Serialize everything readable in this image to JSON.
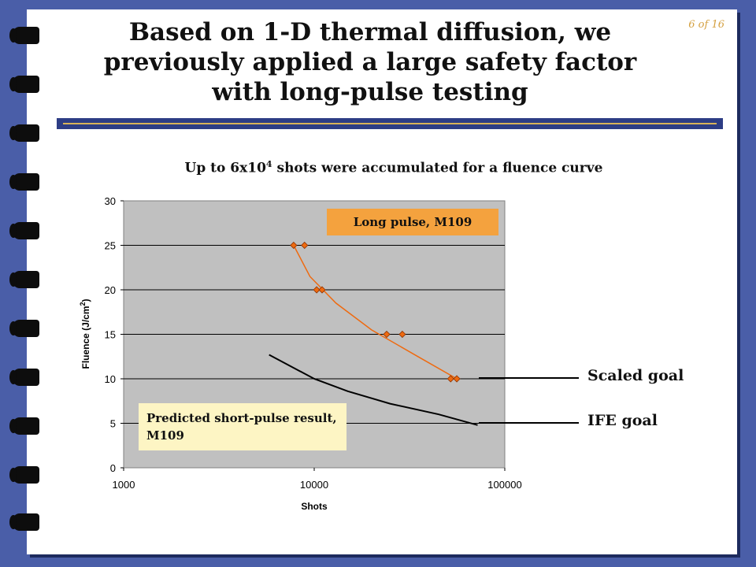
{
  "slide": {
    "title": "Based on 1-D thermal diffusion, we previously applied a large safety factor with long-pulse testing",
    "page_number": "6 of 16",
    "subtitle_pre": "Up to 6x10",
    "subtitle_sup": "4",
    "subtitle_post": " shots were accumulated for a fluence curve"
  },
  "annotations": {
    "long_pulse": "Long pulse, M109",
    "short_pulse": "Predicted short-pulse result, M109",
    "scaled_goal": "Scaled goal",
    "ife_goal": "IFE goal"
  },
  "colors": {
    "plot_bg": "#c0c0c0",
    "long_pulse_series": "#ee6a10",
    "short_pulse_curve": "#000000",
    "slide_frame": "#4a5ea8"
  },
  "chart_data": {
    "type": "scatter",
    "xscale": "log",
    "xlim": [
      1000,
      100000
    ],
    "ylim": [
      0,
      30
    ],
    "xlabel": "Shots",
    "ylabel": "Fluence (J/cm2)",
    "xticks": [
      "1000",
      "10000",
      "100000"
    ],
    "yticks": [
      "0",
      "5",
      "10",
      "15",
      "20",
      "25",
      "30"
    ],
    "grid": true,
    "series": [
      {
        "points": [
          {
            "x": 7800,
            "y": 25
          },
          {
            "x": 8900,
            "y": 25
          },
          {
            "x": 10300,
            "y": 20
          },
          {
            "x": 11000,
            "y": 20
          },
          {
            "x": 24000,
            "y": 15
          },
          {
            "x": 29000,
            "y": 15
          },
          {
            "x": 52000,
            "y": 10
          },
          {
            "x": 56000,
            "y": 10
          }
        ],
        "trend": [
          {
            "x": 7800,
            "y": 25
          },
          {
            "x": 9500,
            "y": 21.5
          },
          {
            "x": 13000,
            "y": 18.5
          },
          {
            "x": 20000,
            "y": 15.5
          },
          {
            "x": 35000,
            "y": 12.5
          },
          {
            "x": 56000,
            "y": 10
          }
        ]
      },
      {
        "line": [
          {
            "x": 5800,
            "y": 12.7
          },
          {
            "x": 10000,
            "y": 10
          },
          {
            "x": 15000,
            "y": 8.6
          },
          {
            "x": 25000,
            "y": 7.2
          },
          {
            "x": 45000,
            "y": 6
          },
          {
            "x": 72000,
            "y": 4.8
          }
        ]
      }
    ]
  }
}
